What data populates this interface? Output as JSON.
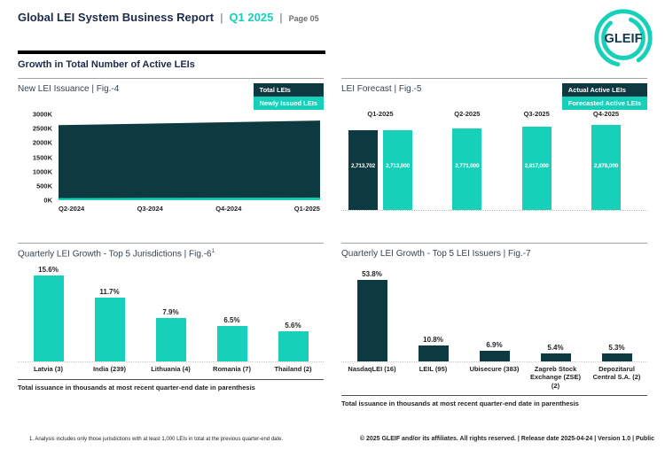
{
  "header": {
    "title": "Global LEI System Business Report",
    "separator": "|",
    "period": "Q1 2025",
    "page": "Page 05",
    "logo_text": "GLEIF"
  },
  "section_title": "Growth in Total Number of Active LEIs",
  "colors": {
    "teal": "#17d0ba",
    "dark": "#0d3a40",
    "heading_navy": "#1c2b4a",
    "panel_title": "#36454f",
    "gray": "#6d6e71"
  },
  "panels": {
    "issuance": {
      "title": "New LEI Issuance | Fig.-4",
      "legend": [
        {
          "label": "Total LEIs",
          "color": "dark"
        },
        {
          "label": "Newly Issued LEIs",
          "color": "teal"
        }
      ]
    },
    "forecast": {
      "title": "LEI Forecast | Fig.-5",
      "legend": [
        {
          "label": "Actual Active LEIs",
          "color": "dark"
        },
        {
          "label": "Forecasted Active LEIs",
          "color": "teal"
        }
      ]
    },
    "jurisdictions": {
      "title": "Quarterly LEI Growth - Top 5 Jurisdictions | Fig.-6",
      "title_sup": "1",
      "note": "Total issuance in thousands at most recent quarter-end date in parenthesis"
    },
    "issuers": {
      "title": "Quarterly LEI Growth - Top 5 LEI Issuers | Fig.-7",
      "note": "Total issuance in thousands at most recent quarter-end date in parenthesis"
    }
  },
  "chart_data": [
    {
      "id": "new-lei-issuance",
      "type": "area",
      "title": "New LEI Issuance | Fig.-4",
      "x": [
        "Q2-2024",
        "Q3-2024",
        "Q4-2024",
        "Q1-2025"
      ],
      "series": [
        {
          "name": "Total LEIs",
          "values_thousands": [
            2620,
            2670,
            2725,
            2780
          ],
          "color_key": "dark"
        },
        {
          "name": "Newly Issued LEIs",
          "values_thousands": [
            75,
            80,
            85,
            90
          ],
          "color_key": "teal"
        }
      ],
      "ylim_thousands": [
        0,
        3000
      ],
      "yticks": [
        "3000K",
        "2500K",
        "2000K",
        "1500K",
        "1000K",
        "500K",
        "0K"
      ],
      "legend_position": "top-right",
      "grid": false
    },
    {
      "id": "lei-forecast",
      "type": "bar",
      "title": "LEI Forecast | Fig.-5",
      "groups": [
        {
          "label": "Q1-2025",
          "bars": [
            {
              "series": "Actual Active LEIs",
              "value": 2713702,
              "label": "2,713,702",
              "color_key": "dark"
            },
            {
              "series": "Forecasted Active LEIs",
              "value": 2713000,
              "label": "2,713,000",
              "color_key": "teal"
            }
          ]
        },
        {
          "label": "Q2-2025",
          "bars": [
            {
              "series": "Forecasted Active LEIs",
              "value": 2771000,
              "label": "2,771,000",
              "color_key": "teal"
            }
          ]
        },
        {
          "label": "Q3-2025",
          "bars": [
            {
              "series": "Forecasted Active LEIs",
              "value": 2817000,
              "label": "2,817,000",
              "color_key": "teal"
            }
          ]
        },
        {
          "label": "Q4-2025",
          "bars": [
            {
              "series": "Forecasted Active LEIs",
              "value": 2878000,
              "label": "2,878,000",
              "color_key": "teal"
            }
          ]
        }
      ],
      "legend_position": "top-right",
      "grid": false
    },
    {
      "id": "top5-jurisdictions",
      "type": "bar",
      "title": "Quarterly LEI Growth - Top 5 Jurisdictions | Fig.-6",
      "categories": [
        "Latvia (3)",
        "India (239)",
        "Lithuania (4)",
        "Romania (7)",
        "Thailand (2)"
      ],
      "values_percent": [
        15.6,
        11.7,
        7.9,
        6.5,
        5.6
      ],
      "labels": [
        "15.6%",
        "11.7%",
        "7.9%",
        "6.5%",
        "5.6%"
      ],
      "bar_color_key": "teal",
      "grid": false
    },
    {
      "id": "top5-lei-issuers",
      "type": "bar",
      "title": "Quarterly LEI Growth - Top 5 LEI Issuers | Fig.-7",
      "categories": [
        "NasdaqLEI (16)",
        "LEIL (95)",
        "Ubisecure (383)",
        "Zagreb Stock Exchange (ZSE) (2)",
        "Depozitarul Central S.A. (2)"
      ],
      "values_percent": [
        53.8,
        10.8,
        6.9,
        5.4,
        5.3
      ],
      "labels": [
        "53.8%",
        "10.8%",
        "6.9%",
        "5.4%",
        "5.3%"
      ],
      "bar_color_key": "dark",
      "grid": false
    }
  ],
  "footer": {
    "footnote": "1. Analysis includes only those jurisdictions with at least 1,000 LEIs in total at the previous quarter-end date.",
    "copyright": "© 2025 GLEIF and/or its affiliates. All rights reserved. | Release date 2025-04-24 | Version 1.0 | Public"
  }
}
